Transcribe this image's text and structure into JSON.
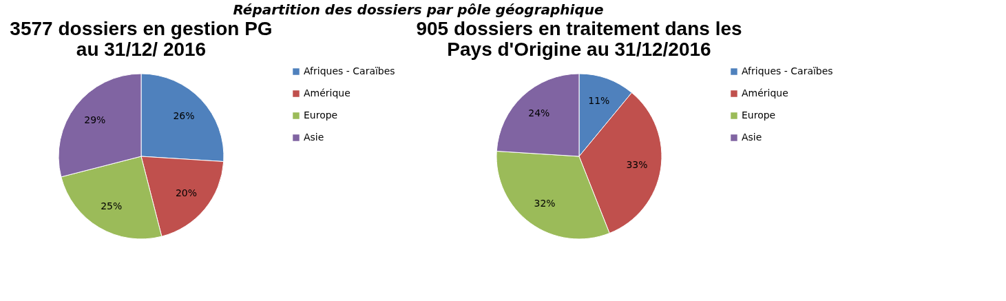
{
  "chart_data": [
    {
      "type": "pie",
      "title": [
        "3577 dossiers en gestion PG",
        "au 31/12/ 2016"
      ],
      "annotations": [
        "Répartition des dossiers par pôle géographique"
      ],
      "categories": [
        "Afriques - Caraïbes",
        "Amérique",
        "Europe",
        "Asie"
      ],
      "values": [
        26,
        20,
        25,
        29
      ],
      "colors": [
        "#4f81bd",
        "#c0504d",
        "#9bbb59",
        "#8064a2"
      ],
      "value_labels": [
        "26%",
        "20%",
        "25%",
        "29%"
      ],
      "legend": "right"
    },
    {
      "type": "pie",
      "title": [
        "905 dossiers en traitement dans les",
        "Pays d'Origine au 31/12/2016"
      ],
      "categories": [
        "Afriques - Caraïbes",
        "Amérique",
        "Europe",
        "Asie"
      ],
      "values": [
        11,
        33,
        32,
        24
      ],
      "colors": [
        "#4f81bd",
        "#c0504d",
        "#9bbb59",
        "#8064a2"
      ],
      "value_labels": [
        "11%",
        "33%",
        "32%",
        "24%"
      ],
      "legend": "right"
    }
  ]
}
